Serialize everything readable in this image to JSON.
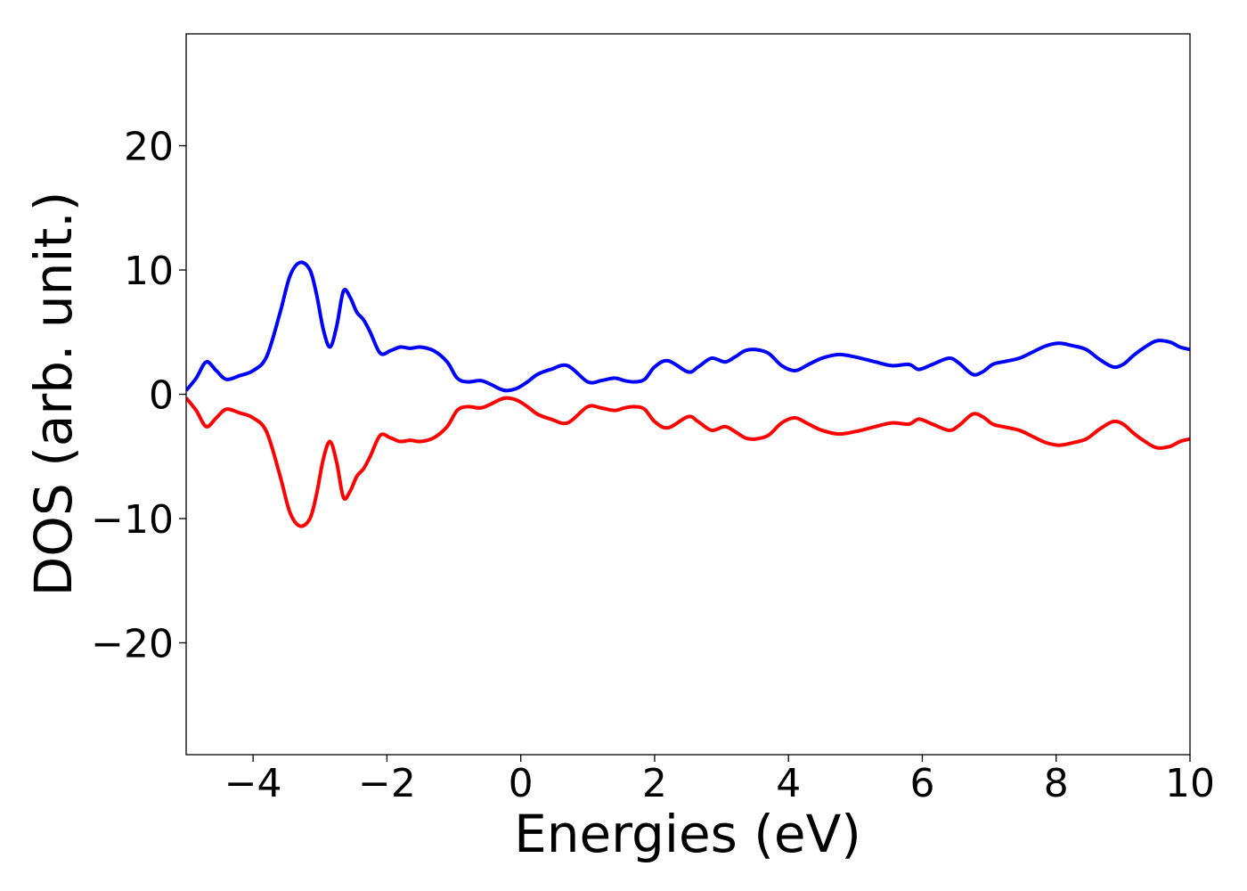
{
  "chart_data": {
    "type": "line",
    "title": "",
    "xlabel": "Energies (eV)",
    "ylabel": "DOS (arb. unit.)",
    "xlim": [
      -5,
      10
    ],
    "ylim": [
      -29,
      29
    ],
    "xticks": [
      -4,
      -2,
      0,
      2,
      4,
      6,
      8,
      10
    ],
    "xtick_labels": [
      "−4",
      "−2",
      "0",
      "2",
      "4",
      "6",
      "8",
      "10"
    ],
    "yticks": [
      -20,
      -10,
      0,
      10,
      20
    ],
    "ytick_labels": [
      "−20",
      "−10",
      "0",
      "10",
      "20"
    ],
    "grid": false,
    "legend": "none",
    "series": [
      {
        "color": "#0000ff",
        "x": [
          -5.0,
          -4.85,
          -4.7,
          -4.55,
          -4.4,
          -4.2,
          -4.0,
          -3.8,
          -3.6,
          -3.45,
          -3.3,
          -3.15,
          -3.05,
          -2.95,
          -2.85,
          -2.75,
          -2.65,
          -2.55,
          -2.45,
          -2.35,
          -2.25,
          -2.1,
          -1.95,
          -1.8,
          -1.65,
          -1.5,
          -1.3,
          -1.1,
          -0.95,
          -0.8,
          -0.6,
          -0.45,
          -0.3,
          -0.2,
          -0.05,
          0.1,
          0.25,
          0.45,
          0.7,
          1.0,
          1.2,
          1.4,
          1.55,
          1.7,
          1.85,
          2.0,
          2.2,
          2.5,
          2.65,
          2.85,
          3.05,
          3.2,
          3.35,
          3.5,
          3.7,
          3.9,
          4.1,
          4.3,
          4.5,
          4.75,
          5.0,
          5.3,
          5.55,
          5.8,
          5.95,
          6.15,
          6.4,
          6.55,
          6.75,
          6.9,
          7.05,
          7.2,
          7.45,
          7.65,
          7.85,
          8.05,
          8.25,
          8.45,
          8.65,
          8.85,
          9.0,
          9.15,
          9.3,
          9.5,
          9.7,
          9.85,
          10.0
        ],
        "y": [
          0.3,
          1.3,
          2.6,
          1.9,
          1.2,
          1.5,
          1.9,
          3.0,
          6.5,
          9.5,
          10.6,
          10.0,
          8.0,
          5.2,
          3.8,
          5.5,
          8.3,
          7.8,
          6.6,
          6.0,
          5.0,
          3.3,
          3.5,
          3.8,
          3.7,
          3.8,
          3.5,
          2.6,
          1.3,
          1.0,
          1.1,
          0.8,
          0.4,
          0.3,
          0.5,
          1.0,
          1.6,
          2.0,
          2.3,
          1.0,
          1.1,
          1.3,
          1.1,
          1.0,
          1.2,
          2.2,
          2.7,
          1.8,
          2.2,
          2.9,
          2.6,
          3.0,
          3.5,
          3.6,
          3.3,
          2.3,
          1.9,
          2.4,
          2.9,
          3.2,
          3.0,
          2.6,
          2.3,
          2.4,
          2.0,
          2.4,
          2.9,
          2.5,
          1.6,
          1.8,
          2.4,
          2.6,
          2.9,
          3.4,
          3.9,
          4.1,
          3.9,
          3.6,
          2.8,
          2.2,
          2.4,
          3.1,
          3.7,
          4.3,
          4.2,
          3.8,
          3.6
        ]
      },
      {
        "color": "#ff0000",
        "x": [
          -5.0,
          -4.85,
          -4.7,
          -4.55,
          -4.4,
          -4.2,
          -4.0,
          -3.8,
          -3.6,
          -3.45,
          -3.3,
          -3.15,
          -3.05,
          -2.95,
          -2.85,
          -2.75,
          -2.65,
          -2.55,
          -2.45,
          -2.35,
          -2.25,
          -2.1,
          -1.95,
          -1.8,
          -1.65,
          -1.5,
          -1.3,
          -1.1,
          -0.95,
          -0.8,
          -0.6,
          -0.45,
          -0.3,
          -0.2,
          -0.05,
          0.1,
          0.25,
          0.45,
          0.7,
          1.0,
          1.2,
          1.4,
          1.55,
          1.7,
          1.85,
          2.0,
          2.2,
          2.5,
          2.65,
          2.85,
          3.05,
          3.2,
          3.35,
          3.5,
          3.7,
          3.9,
          4.1,
          4.3,
          4.5,
          4.75,
          5.0,
          5.3,
          5.55,
          5.8,
          5.95,
          6.15,
          6.4,
          6.55,
          6.75,
          6.9,
          7.05,
          7.2,
          7.45,
          7.65,
          7.85,
          8.05,
          8.25,
          8.45,
          8.65,
          8.85,
          9.0,
          9.15,
          9.3,
          9.5,
          9.7,
          9.85,
          10.0
        ],
        "y": [
          -0.3,
          -1.3,
          -2.6,
          -1.9,
          -1.2,
          -1.5,
          -1.9,
          -3.0,
          -6.5,
          -9.5,
          -10.6,
          -10.0,
          -8.0,
          -5.2,
          -3.8,
          -5.5,
          -8.3,
          -7.8,
          -6.6,
          -6.0,
          -5.0,
          -3.3,
          -3.5,
          -3.8,
          -3.7,
          -3.8,
          -3.5,
          -2.6,
          -1.3,
          -1.0,
          -1.1,
          -0.8,
          -0.4,
          -0.3,
          -0.5,
          -1.0,
          -1.6,
          -2.0,
          -2.3,
          -1.0,
          -1.1,
          -1.3,
          -1.1,
          -1.0,
          -1.2,
          -2.2,
          -2.7,
          -1.8,
          -2.2,
          -2.9,
          -2.6,
          -3.0,
          -3.5,
          -3.6,
          -3.3,
          -2.3,
          -1.9,
          -2.4,
          -2.9,
          -3.2,
          -3.0,
          -2.6,
          -2.3,
          -2.4,
          -2.0,
          -2.4,
          -2.9,
          -2.5,
          -1.6,
          -1.8,
          -2.4,
          -2.6,
          -2.9,
          -3.4,
          -3.9,
          -4.1,
          -3.9,
          -3.6,
          -2.8,
          -2.2,
          -2.4,
          -3.1,
          -3.7,
          -4.3,
          -4.2,
          -3.8,
          -3.6
        ]
      }
    ]
  }
}
